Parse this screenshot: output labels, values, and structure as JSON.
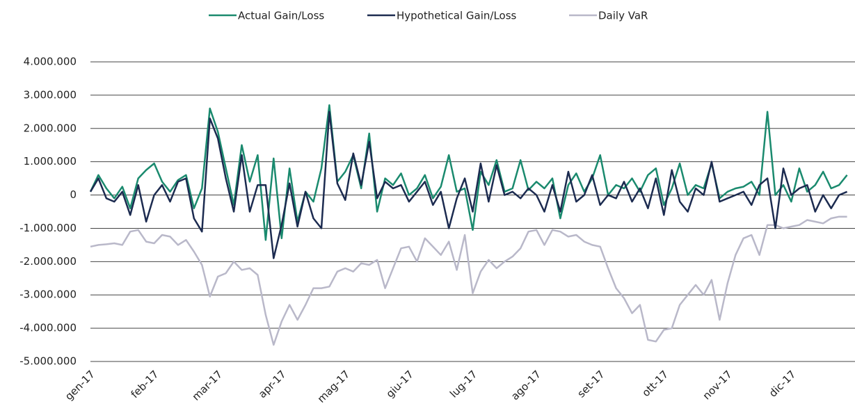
{
  "chart_data": {
    "type": "line",
    "categories": [
      "gen-17",
      null,
      null,
      null,
      null,
      null,
      null,
      null,
      "feb-17",
      null,
      null,
      null,
      null,
      null,
      null,
      null,
      "mar-17",
      null,
      null,
      null,
      null,
      null,
      null,
      null,
      "apr-17",
      null,
      null,
      null,
      null,
      null,
      null,
      null,
      "mag-17",
      null,
      null,
      null,
      null,
      null,
      null,
      null,
      "giu-17",
      null,
      null,
      null,
      null,
      null,
      null,
      null,
      "lug-17",
      null,
      null,
      null,
      null,
      null,
      null,
      null,
      "ago-17",
      null,
      null,
      null,
      null,
      null,
      null,
      null,
      "set-17",
      null,
      null,
      null,
      null,
      null,
      null,
      null,
      "ott-17",
      null,
      null,
      null,
      null,
      null,
      null,
      null,
      "nov-17",
      null,
      null,
      null,
      null,
      null,
      null,
      null,
      "dic-17",
      null,
      null,
      null,
      null,
      null,
      null,
      null
    ],
    "series": [
      {
        "name": "Actual Gain/Loss",
        "color": "#1a8a6e",
        "values": [
          100000,
          600000,
          200000,
          -100000,
          250000,
          -400000,
          500000,
          750000,
          950000,
          400000,
          100000,
          450000,
          600000,
          -400000,
          200000,
          2600000,
          1900000,
          800000,
          -300000,
          1500000,
          400000,
          1200000,
          -1350000,
          1100000,
          -1300000,
          800000,
          -800000,
          100000,
          -200000,
          800000,
          2700000,
          400000,
          700000,
          1200000,
          200000,
          1850000,
          -500000,
          500000,
          300000,
          650000,
          0,
          200000,
          600000,
          -100000,
          250000,
          1200000,
          100000,
          200000,
          -1050000,
          700000,
          300000,
          1050000,
          100000,
          200000,
          1050000,
          150000,
          400000,
          200000,
          500000,
          -700000,
          300000,
          650000,
          100000,
          500000,
          1200000,
          0,
          300000,
          200000,
          500000,
          100000,
          600000,
          800000,
          -300000,
          200000,
          950000,
          0,
          300000,
          200000,
          950000,
          -100000,
          100000,
          200000,
          250000,
          400000,
          0,
          2500000,
          0,
          300000,
          -200000,
          800000,
          100000,
          300000,
          700000,
          200000,
          300000,
          600000
        ]
      },
      {
        "name": "Hypothetical Gain/Loss",
        "color": "#1c2b50",
        "values": [
          100000,
          500000,
          -100000,
          -200000,
          100000,
          -600000,
          300000,
          -800000,
          0,
          300000,
          -200000,
          400000,
          500000,
          -700000,
          -1100000,
          2300000,
          1700000,
          500000,
          -500000,
          1200000,
          -500000,
          300000,
          300000,
          -1900000,
          -900000,
          350000,
          -950000,
          100000,
          -700000,
          -1000000,
          2500000,
          350000,
          -150000,
          1250000,
          300000,
          1600000,
          -100000,
          400000,
          200000,
          300000,
          -200000,
          100000,
          400000,
          -300000,
          100000,
          -1000000,
          -100000,
          500000,
          -500000,
          950000,
          -200000,
          900000,
          0,
          100000,
          -100000,
          200000,
          0,
          -500000,
          300000,
          -500000,
          700000,
          -200000,
          0,
          600000,
          -300000,
          0,
          -100000,
          400000,
          -200000,
          200000,
          -400000,
          500000,
          -600000,
          750000,
          -200000,
          -500000,
          200000,
          0,
          1000000,
          -200000,
          -100000,
          0,
          100000,
          -300000,
          300000,
          500000,
          -1000000,
          800000,
          0,
          200000,
          300000,
          -500000,
          0,
          -400000,
          0,
          100000
        ]
      },
      {
        "name": "Daily VaR",
        "color": "#b9b8c9",
        "values": [
          -1550000,
          -1500000,
          -1480000,
          -1450000,
          -1500000,
          -1100000,
          -1050000,
          -1400000,
          -1450000,
          -1200000,
          -1250000,
          -1500000,
          -1350000,
          -1700000,
          -2100000,
          -3050000,
          -2450000,
          -2350000,
          -2000000,
          -2250000,
          -2200000,
          -2400000,
          -3600000,
          -4500000,
          -3800000,
          -3300000,
          -3750000,
          -3300000,
          -2800000,
          -2800000,
          -2750000,
          -2300000,
          -2200000,
          -2300000,
          -2050000,
          -2100000,
          -1950000,
          -2800000,
          -2200000,
          -1600000,
          -1550000,
          -2000000,
          -1300000,
          -1550000,
          -1800000,
          -1400000,
          -2250000,
          -1200000,
          -2950000,
          -2300000,
          -1950000,
          -2200000,
          -2000000,
          -1850000,
          -1600000,
          -1100000,
          -1050000,
          -1500000,
          -1050000,
          -1100000,
          -1250000,
          -1200000,
          -1400000,
          -1500000,
          -1550000,
          -2200000,
          -2800000,
          -3100000,
          -3550000,
          -3300000,
          -4350000,
          -4400000,
          -4050000,
          -4000000,
          -3300000,
          -3000000,
          -2700000,
          -3000000,
          -2550000,
          -3750000,
          -2650000,
          -1800000,
          -1300000,
          -1200000,
          -1800000,
          -900000,
          -900000,
          -1000000,
          -950000,
          -900000,
          -750000,
          -800000,
          -850000,
          -700000,
          -650000,
          -650000
        ]
      }
    ],
    "ylim": [
      -5000000,
      4000000
    ],
    "yticks": [
      {
        "value": -5000000,
        "label": "-5.000.000"
      },
      {
        "value": -4000000,
        "label": "-4.000.000"
      },
      {
        "value": -3000000,
        "label": "-3.000.000"
      },
      {
        "value": -2000000,
        "label": "-2.000.000"
      },
      {
        "value": -1000000,
        "label": "-1.000.000"
      },
      0,
      {
        "value": 1000000,
        "label": "1.000.000"
      },
      {
        "value": 2000000,
        "label": "2.000.000"
      },
      {
        "value": 3000000,
        "label": "3.000.000"
      },
      {
        "value": 4000000,
        "label": "4.000.000"
      }
    ],
    "grid": true,
    "legend": "top"
  }
}
